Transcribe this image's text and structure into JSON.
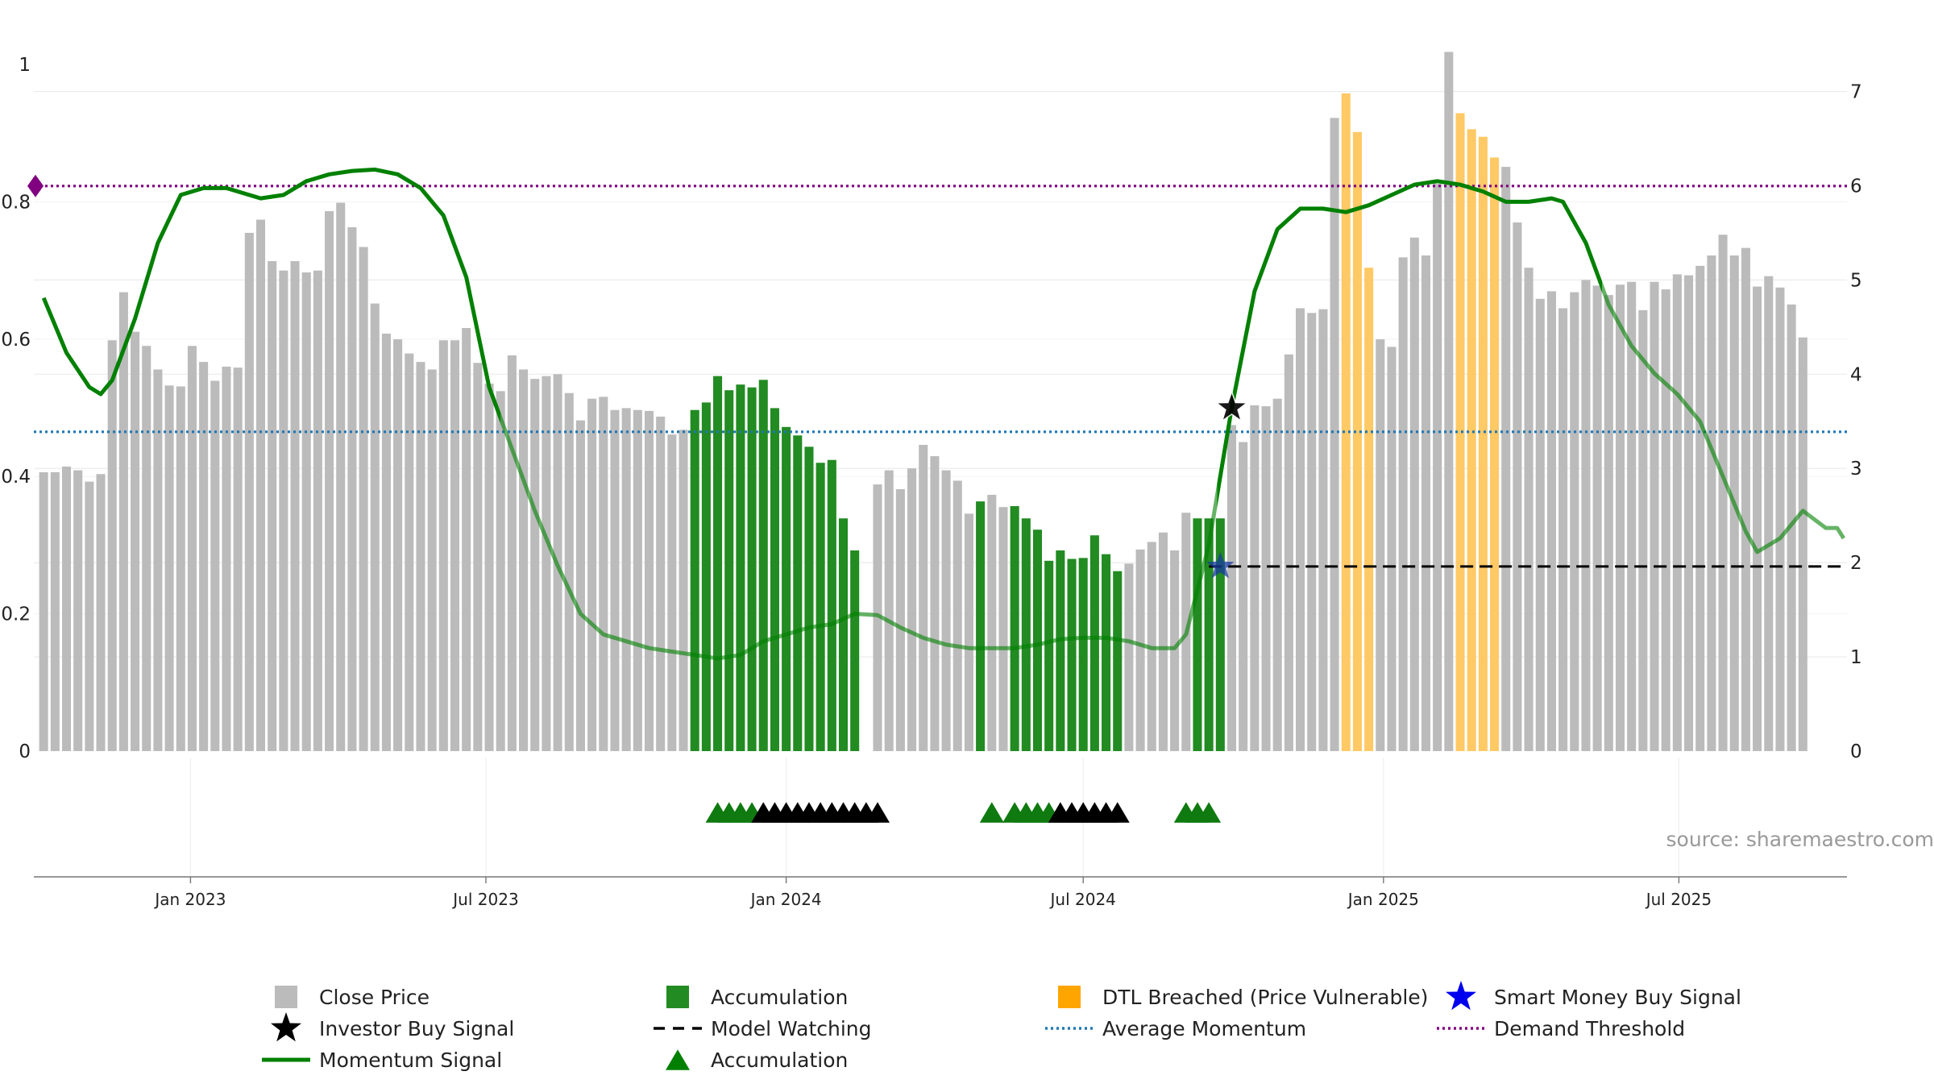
{
  "source_note": "source: sharemaestro.com",
  "chart_data": {
    "type": "bar",
    "x_axis": {
      "type": "date",
      "range": [
        "2022-09-27",
        "2025-10-12"
      ],
      "ticks": [
        {
          "date": "2023-01-01",
          "label": "Jan 2023"
        },
        {
          "date": "2023-07-01",
          "label": "Jul 2023"
        },
        {
          "date": "2024-01-01",
          "label": "Jan 2024"
        },
        {
          "date": "2024-07-01",
          "label": "Jul 2024"
        },
        {
          "date": "2025-01-01",
          "label": "Jan 2025"
        },
        {
          "date": "2025-07-01",
          "label": "Jul 2025"
        }
      ]
    },
    "y_left": {
      "range": [
        0,
        1
      ],
      "ticks": [
        0,
        0.2,
        0.4,
        0.6,
        0.8,
        1
      ],
      "tick_labels": [
        "0",
        "0.2",
        "0.4",
        "0.6",
        "0.8",
        "1"
      ]
    },
    "y_right": {
      "range": [
        0,
        7.8
      ],
      "ticks": [
        0,
        1,
        2,
        3,
        4,
        5,
        6,
        7
      ],
      "tick_labels": [
        "0",
        "1",
        "2",
        "3",
        "4",
        "5",
        "6",
        "7"
      ],
      "grid": true
    },
    "bars": {
      "name": "Close Price",
      "start": "2022-10-03",
      "interval_days": 7,
      "values": [
        2.96,
        2.96,
        3.02,
        2.98,
        2.86,
        2.94,
        4.36,
        4.87,
        4.45,
        4.3,
        4.05,
        3.88,
        3.87,
        4.3,
        4.13,
        3.93,
        4.08,
        4.07,
        5.5,
        5.64,
        5.2,
        5.1,
        5.2,
        5.08,
        5.1,
        5.73,
        5.82,
        5.56,
        5.35,
        4.75,
        4.43,
        4.37,
        4.22,
        4.13,
        4.05,
        4.36,
        4.36,
        4.49,
        4.12,
        3.9,
        3.82,
        4.2,
        4.05,
        3.95,
        3.98,
        4.0,
        3.8,
        3.51,
        3.74,
        3.76,
        3.62,
        3.64,
        3.62,
        3.61,
        3.55,
        3.36,
        3.41,
        3.62,
        3.7,
        3.98,
        3.83,
        3.89,
        3.86,
        3.94,
        3.64,
        3.44,
        3.35,
        3.23,
        3.06,
        3.09,
        2.47,
        2.13,
        0,
        2.83,
        2.98,
        2.78,
        3.0,
        3.25,
        3.13,
        2.98,
        2.87,
        2.52,
        2.65,
        2.72,
        2.59,
        2.6,
        2.47,
        2.35,
        2.02,
        2.13,
        2.04,
        2.05,
        2.29,
        2.09,
        1.91,
        1.99,
        2.14,
        2.22,
        2.32,
        2.13,
        2.53,
        2.47,
        2.47,
        2.47,
        3.46,
        3.28,
        3.67,
        3.66,
        3.74,
        4.21,
        4.7,
        4.65,
        4.69,
        6.72,
        6.98,
        6.57,
        5.13,
        4.37,
        4.29,
        5.24,
        5.45,
        5.26,
        6.02,
        7.42,
        6.77,
        6.6,
        6.52,
        6.3,
        6.2,
        5.61,
        5.13,
        4.8,
        4.88,
        4.7,
        4.87,
        5.0,
        4.94,
        4.84,
        4.95,
        4.98,
        4.68,
        4.98,
        4.9,
        5.06,
        5.05,
        5.15,
        5.26,
        5.48,
        5.26,
        5.34,
        4.93,
        5.04,
        4.92,
        4.74,
        4.39
      ],
      "accumulation_ranges": [
        [
          57,
          71
        ],
        [
          82,
          82
        ],
        [
          85,
          94
        ],
        [
          101,
          103
        ]
      ],
      "dtl_breached_ranges": [
        [
          114,
          116
        ],
        [
          124,
          127
        ]
      ]
    },
    "momentum_signal": {
      "name": "Momentum Signal",
      "axis": "left",
      "points": [
        [
          "2022-10-03",
          0.66
        ],
        [
          "2022-10-17",
          0.58
        ],
        [
          "2022-10-31",
          0.53
        ],
        [
          "2022-11-07",
          0.52
        ],
        [
          "2022-11-14",
          0.54
        ],
        [
          "2022-11-28",
          0.63
        ],
        [
          "2022-12-12",
          0.74
        ],
        [
          "2022-12-26",
          0.81
        ],
        [
          "2023-01-09",
          0.82
        ],
        [
          "2023-01-23",
          0.82
        ],
        [
          "2023-02-06",
          0.81
        ],
        [
          "2023-02-13",
          0.805
        ],
        [
          "2023-02-27",
          0.81
        ],
        [
          "2023-03-13",
          0.83
        ],
        [
          "2023-03-27",
          0.84
        ],
        [
          "2023-04-10",
          0.845
        ],
        [
          "2023-04-24",
          0.847
        ],
        [
          "2023-05-08",
          0.84
        ],
        [
          "2023-05-22",
          0.82
        ],
        [
          "2023-06-05",
          0.78
        ],
        [
          "2023-06-19",
          0.69
        ],
        [
          "2023-07-03",
          0.53
        ],
        [
          "2023-07-17",
          0.44
        ],
        [
          "2023-07-31",
          0.35
        ],
        [
          "2023-08-14",
          0.27
        ],
        [
          "2023-08-28",
          0.2
        ],
        [
          "2023-09-11",
          0.17
        ],
        [
          "2023-09-25",
          0.16
        ],
        [
          "2023-10-09",
          0.15
        ],
        [
          "2023-10-23",
          0.145
        ],
        [
          "2023-11-06",
          0.14
        ],
        [
          "2023-11-20",
          0.135
        ],
        [
          "2023-12-04",
          0.14
        ],
        [
          "2023-12-18",
          0.16
        ],
        [
          "2024-01-01",
          0.17
        ],
        [
          "2024-01-15",
          0.18
        ],
        [
          "2024-01-29",
          0.185
        ],
        [
          "2024-02-12",
          0.2
        ],
        [
          "2024-02-26",
          0.198
        ],
        [
          "2024-03-11",
          0.18
        ],
        [
          "2024-03-25",
          0.165
        ],
        [
          "2024-04-08",
          0.155
        ],
        [
          "2024-04-22",
          0.15
        ],
        [
          "2024-05-06",
          0.15
        ],
        [
          "2024-05-20",
          0.15
        ],
        [
          "2024-06-03",
          0.155
        ],
        [
          "2024-06-17",
          0.163
        ],
        [
          "2024-07-01",
          0.165
        ],
        [
          "2024-07-15",
          0.165
        ],
        [
          "2024-07-29",
          0.16
        ],
        [
          "2024-08-12",
          0.15
        ],
        [
          "2024-08-26",
          0.15
        ],
        [
          "2024-09-02",
          0.17
        ],
        [
          "2024-09-16",
          0.3
        ],
        [
          "2024-09-30",
          0.5
        ],
        [
          "2024-10-14",
          0.67
        ],
        [
          "2024-10-28",
          0.76
        ],
        [
          "2024-11-11",
          0.79
        ],
        [
          "2024-11-25",
          0.79
        ],
        [
          "2024-12-09",
          0.785
        ],
        [
          "2024-12-23",
          0.795
        ],
        [
          "2025-01-06",
          0.81
        ],
        [
          "2025-01-20",
          0.825
        ],
        [
          "2025-02-03",
          0.83
        ],
        [
          "2025-02-17",
          0.825
        ],
        [
          "2025-03-03",
          0.815
        ],
        [
          "2025-03-17",
          0.8
        ],
        [
          "2025-03-31",
          0.8
        ],
        [
          "2025-04-14",
          0.805
        ],
        [
          "2025-04-21",
          0.8
        ],
        [
          "2025-05-05",
          0.74
        ],
        [
          "2025-05-19",
          0.65
        ],
        [
          "2025-06-02",
          0.59
        ],
        [
          "2025-06-16",
          0.55
        ],
        [
          "2025-06-30",
          0.52
        ],
        [
          "2025-07-14",
          0.48
        ],
        [
          "2025-07-28",
          0.4
        ],
        [
          "2025-08-11",
          0.32
        ],
        [
          "2025-08-18",
          0.29
        ],
        [
          "2025-09-01",
          0.31
        ],
        [
          "2025-09-15",
          0.35
        ],
        [
          "2025-09-29",
          0.325
        ],
        [
          "2025-10-06",
          0.325
        ],
        [
          "2025-10-10",
          0.31
        ]
      ],
      "faded_ranges": [
        [
          "2023-07-10",
          "2024-09-21"
        ],
        [
          "2025-05-15",
          "2025-10-12"
        ]
      ]
    },
    "average_momentum": {
      "name": "Average Momentum",
      "axis": "left",
      "value": 0.465
    },
    "demand_threshold": {
      "name": "Demand Threshold",
      "axis": "left",
      "value": 0.823
    },
    "model_watching": {
      "name": "Model Watching",
      "axis": "right",
      "value": 1.96,
      "start": "2024-09-16",
      "end": "2025-10-10"
    },
    "investor_buy_signal": {
      "name": "Investor Buy Signal",
      "date": "2024-09-30",
      "axis": "left",
      "value": 0.5
    },
    "smart_money_buy_signal": {
      "name": "Smart Money Buy Signal",
      "date": "2024-09-23",
      "axis": "right",
      "value": 1.96
    },
    "accumulation_markers": {
      "name": "Accumulation",
      "green": [
        "2023-11-20",
        "2023-11-27",
        "2023-12-04",
        "2023-12-11",
        "2024-05-06",
        "2024-05-20",
        "2024-05-27",
        "2024-06-03",
        "2024-06-10",
        "2024-09-02",
        "2024-09-09",
        "2024-09-16"
      ],
      "black": [
        "2023-12-18",
        "2023-12-25",
        "2024-01-01",
        "2024-01-08",
        "2024-01-15",
        "2024-01-22",
        "2024-01-29",
        "2024-02-05",
        "2024-02-12",
        "2024-02-19",
        "2024-02-26",
        "2024-06-17",
        "2024-06-24",
        "2024-07-01",
        "2024-07-08",
        "2024-07-15",
        "2024-07-22"
      ]
    },
    "legend": [
      {
        "label": "Close Price",
        "symbol": "square",
        "color": "#bbbbbb"
      },
      {
        "label": "Accumulation",
        "symbol": "square",
        "color": "#228B22"
      },
      {
        "label": "DTL Breached (Price Vulnerable)",
        "symbol": "square",
        "color": "#FFA500"
      },
      {
        "label": "Smart Money Buy Signal",
        "symbol": "star",
        "color": "#0000ee"
      },
      {
        "label": "Investor Buy Signal",
        "symbol": "star",
        "color": "#000000"
      },
      {
        "label": "Model Watching",
        "symbol": "dash",
        "color": "#000000"
      },
      {
        "label": "Average Momentum",
        "symbol": "dotted",
        "color": "#1f77b4"
      },
      {
        "label": "Demand Threshold",
        "symbol": "dotted",
        "color": "#800080"
      },
      {
        "label": "Momentum Signal",
        "symbol": "line",
        "color": "#008000"
      },
      {
        "label": "Accumulation",
        "symbol": "triangle",
        "color": "#008000"
      }
    ],
    "colors": {
      "close_price": "#bbbbbb",
      "accumulation": "#228B22",
      "dtl_breached": "#FFC966",
      "momentum": "#008000",
      "average_momentum": "#1f77b4",
      "demand_threshold": "#800080",
      "model_watching": "#000000",
      "smart_money": "#1a3aa0",
      "marker_black": "#000000",
      "marker_green": "#0f7a0f"
    }
  }
}
